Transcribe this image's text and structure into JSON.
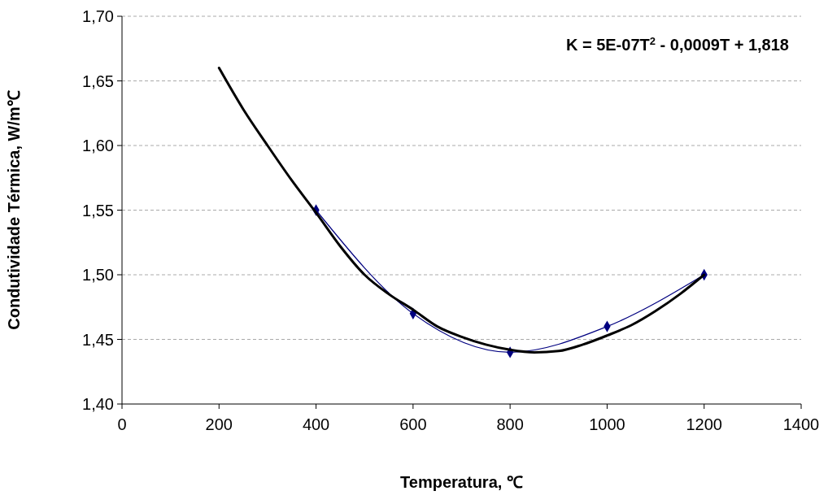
{
  "chart_data": {
    "type": "line",
    "xlabel": "Temperatura, ℃",
    "ylabel": "Condutividade Térmica, W/m℃",
    "annotations": [
      "K = 5E-07T$^{2}$ - 0,0009T + 1,818"
    ],
    "xlim": [
      0,
      1400
    ],
    "xticks": [
      0,
      200,
      400,
      600,
      800,
      1000,
      1200,
      1400
    ],
    "ylim": [
      1.4,
      1.7
    ],
    "yticks": [
      {
        "value": 1.4,
        "label": "1,40"
      },
      {
        "value": 1.45,
        "label": "1,45"
      },
      {
        "value": 1.5,
        "label": "1,50"
      },
      {
        "value": 1.55,
        "label": "1,55"
      },
      {
        "value": 1.6,
        "label": "1,60"
      },
      {
        "value": 1.65,
        "label": "1,65"
      },
      {
        "value": 1.7,
        "label": "1,70"
      }
    ],
    "grid": "y",
    "series": [
      {
        "color": "#000080",
        "marker": "diamond",
        "x": [
          400,
          600,
          800,
          1000,
          1200
        ],
        "values": [
          1.55,
          1.47,
          1.44,
          1.46,
          1.5
        ]
      },
      {
        "color": "#000000",
        "marker": "none",
        "x": [
          200,
          250,
          300,
          350,
          400,
          450,
          500,
          550,
          600,
          650,
          700,
          750,
          800,
          850,
          900,
          950,
          1000,
          1050,
          1100,
          1150,
          1200
        ],
        "values": [
          1.66,
          1.628,
          1.6,
          1.573,
          1.548,
          1.522,
          1.5,
          1.485,
          1.473,
          1.46,
          1.452,
          1.446,
          1.442,
          1.44,
          1.441,
          1.446,
          1.453,
          1.461,
          1.472,
          1.485,
          1.5
        ]
      }
    ]
  }
}
